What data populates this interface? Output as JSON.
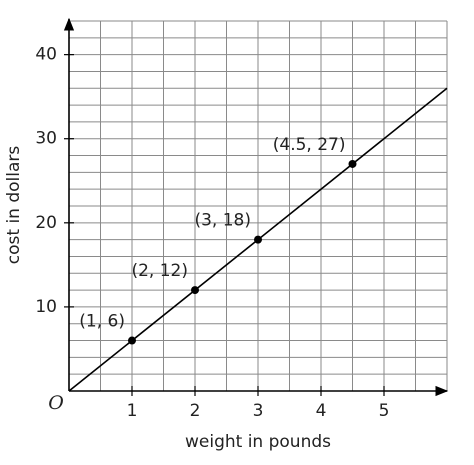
{
  "chart_data": {
    "type": "line",
    "x_label": "weight in pounds",
    "y_label": "cost in dollars",
    "origin_label": "O",
    "xlim": [
      0,
      6
    ],
    "ylim": [
      0,
      44
    ],
    "xticks": [
      1,
      2,
      3,
      4,
      5
    ],
    "yticks": [
      10,
      20,
      30,
      40
    ],
    "xgrid": [
      0.5,
      1,
      1.5,
      2,
      2.5,
      3,
      3.5,
      4,
      4.5,
      5,
      5.5,
      6
    ],
    "ygrid": [
      2,
      4,
      6,
      8,
      10,
      12,
      14,
      16,
      18,
      20,
      22,
      24,
      26,
      28,
      30,
      32,
      34,
      36,
      38,
      40,
      42,
      44
    ],
    "line": {
      "x": [
        0,
        6
      ],
      "values": [
        0,
        36
      ],
      "color": "#000000"
    },
    "points": {
      "x": [
        1,
        2,
        3,
        4.5
      ],
      "values": [
        6,
        12,
        18,
        27
      ],
      "color": "#000000",
      "value_labels": [
        "(1, 6)",
        "(2, 12)",
        "(3, 18)",
        "(4.5, 27)"
      ]
    }
  }
}
